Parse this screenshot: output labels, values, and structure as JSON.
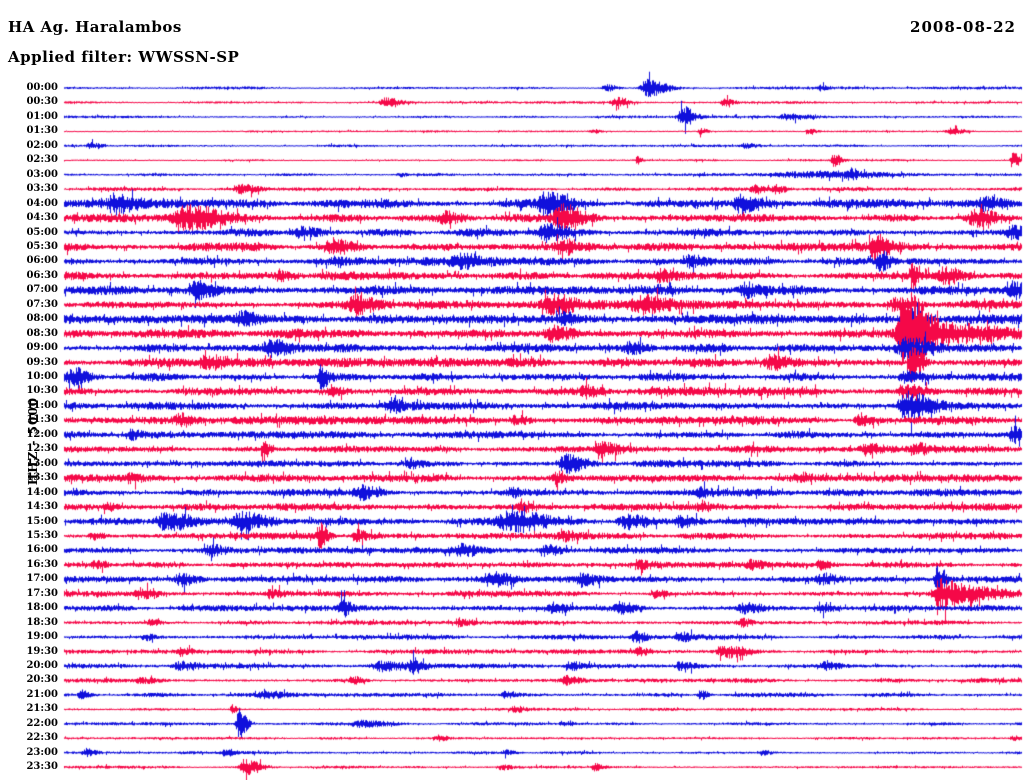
{
  "header": {
    "station": "HA Ag. Haralambos",
    "filter_line": "Applied filter: WWSSN-SP",
    "date": "2008-08-22"
  },
  "y_axis_label": "HHZ - 5000",
  "colors": {
    "blue": "#1010dc",
    "red": "#f50848",
    "text": "#000000",
    "background": "#ffffff"
  },
  "chart_data": {
    "type": "line",
    "subtype": "helicorder-seismogram",
    "title": "HA Ag. Haralambos",
    "date": "2008-08-22",
    "filter": "WWSSN-SP",
    "scale_label": "HHZ - 5000",
    "row_interval_minutes": 30,
    "time_range": [
      "00:00",
      "23:30"
    ],
    "trace_colors_alternate": [
      "blue",
      "red"
    ],
    "amplitude_unit": "pixels",
    "event_format": "[position_fraction_of_row, peak_amplitude_px, envelope_width_fraction]",
    "rows": [
      {
        "time": "00:00",
        "color": "blue",
        "noise": 1.0,
        "events": [
          [
            0.608,
            7,
            0.01
          ],
          [
            0.565,
            3,
            0.006
          ],
          [
            0.79,
            2,
            0.004
          ]
        ]
      },
      {
        "time": "00:30",
        "color": "red",
        "noise": 0.9,
        "events": [
          [
            0.335,
            3.5,
            0.008
          ],
          [
            0.575,
            4,
            0.006
          ],
          [
            0.688,
            3,
            0.005
          ]
        ]
      },
      {
        "time": "01:00",
        "color": "blue",
        "noise": 1.0,
        "events": [
          [
            0.645,
            9,
            0.006
          ],
          [
            0.755,
            2.5,
            0.012
          ]
        ]
      },
      {
        "time": "01:30",
        "color": "red",
        "noise": 0.8,
        "events": [
          [
            0.55,
            2,
            0.004
          ],
          [
            0.664,
            2.5,
            0.004
          ],
          [
            0.777,
            2,
            0.004
          ],
          [
            0.925,
            2.5,
            0.008
          ]
        ]
      },
      {
        "time": "02:00",
        "color": "blue",
        "noise": 1.0,
        "events": [
          [
            0.027,
            2.5,
            0.006
          ],
          [
            0.71,
            2,
            0.008
          ]
        ]
      },
      {
        "time": "02:30",
        "color": "red",
        "noise": 0.8,
        "events": [
          [
            0.598,
            3,
            0.003
          ],
          [
            0.803,
            5,
            0.004
          ],
          [
            0.99,
            6,
            0.004
          ]
        ]
      },
      {
        "time": "03:00",
        "color": "blue",
        "noise": 1.0,
        "events": [
          [
            0.77,
            2.5,
            0.05
          ],
          [
            0.82,
            4,
            0.003
          ],
          [
            0.35,
            1.5,
            0.004
          ]
        ]
      },
      {
        "time": "03:30",
        "color": "red",
        "noise": 1.4,
        "events": [
          [
            0.184,
            3,
            0.008
          ],
          [
            0.72,
            3.5,
            0.005
          ],
          [
            0.742,
            4,
            0.005
          ]
        ]
      },
      {
        "time": "04:00",
        "color": "blue",
        "noise": 3.0,
        "events": [
          [
            0.053,
            6,
            0.01
          ],
          [
            0.502,
            8,
            0.012
          ],
          [
            0.706,
            6,
            0.01
          ],
          [
            0.96,
            4,
            0.01
          ]
        ]
      },
      {
        "time": "04:30",
        "color": "red",
        "noise": 3.0,
        "events": [
          [
            0.126,
            8,
            0.02
          ],
          [
            0.398,
            4,
            0.01
          ],
          [
            0.518,
            10,
            0.012
          ],
          [
            0.951,
            6,
            0.012
          ]
        ]
      },
      {
        "time": "05:00",
        "color": "blue",
        "noise": 3.0,
        "events": [
          [
            0.246,
            4,
            0.012
          ],
          [
            0.502,
            6,
            0.01
          ],
          [
            0.988,
            5,
            0.008
          ]
        ]
      },
      {
        "time": "05:30",
        "color": "red",
        "noise": 3.0,
        "events": [
          [
            0.278,
            4,
            0.01
          ],
          [
            0.518,
            5,
            0.01
          ],
          [
            0.846,
            8,
            0.008
          ]
        ]
      },
      {
        "time": "06:00",
        "color": "blue",
        "noise": 3.0,
        "events": [
          [
            0.413,
            4,
            0.01
          ],
          [
            0.653,
            4,
            0.008
          ],
          [
            0.852,
            8,
            0.005
          ]
        ]
      },
      {
        "time": "06:30",
        "color": "red",
        "noise": 3.0,
        "events": [
          [
            0.225,
            4,
            0.008
          ],
          [
            0.622,
            3.5,
            0.008
          ],
          [
            0.885,
            16,
            0.002
          ],
          [
            0.92,
            5,
            0.008
          ]
        ]
      },
      {
        "time": "07:00",
        "color": "blue",
        "noise": 3.3,
        "events": [
          [
            0.137,
            6,
            0.01
          ],
          [
            0.711,
            5,
            0.01
          ],
          [
            0.99,
            5,
            0.008
          ]
        ]
      },
      {
        "time": "07:30",
        "color": "red",
        "noise": 3.3,
        "events": [
          [
            0.304,
            6,
            0.012
          ],
          [
            0.507,
            6,
            0.012
          ],
          [
            0.6,
            6,
            0.015
          ],
          [
            0.867,
            5,
            0.01
          ]
        ]
      },
      {
        "time": "08:00",
        "color": "blue",
        "noise": 3.3,
        "events": [
          [
            0.184,
            4,
            0.008
          ],
          [
            0.52,
            4,
            0.008
          ],
          [
            0.878,
            9,
            0.008
          ]
        ]
      },
      {
        "time": "08:30",
        "color": "red",
        "noise": 3.3,
        "events": [
          [
            0.508,
            5,
            0.01
          ],
          [
            0.878,
            30,
            0.01
          ],
          [
            0.9,
            8,
            0.035
          ]
        ]
      },
      {
        "time": "09:00",
        "color": "blue",
        "noise": 3.3,
        "events": [
          [
            0.215,
            6,
            0.012
          ],
          [
            0.59,
            4,
            0.01
          ],
          [
            0.878,
            7,
            0.014
          ]
        ]
      },
      {
        "time": "09:30",
        "color": "red",
        "noise": 3.3,
        "events": [
          [
            0.147,
            5,
            0.01
          ],
          [
            0.737,
            5,
            0.008
          ],
          [
            0.885,
            14,
            0.005
          ]
        ]
      },
      {
        "time": "10:00",
        "color": "blue",
        "noise": 3.0,
        "events": [
          [
            0.008,
            6,
            0.008
          ],
          [
            0.267,
            9,
            0.004
          ],
          [
            0.878,
            4,
            0.01
          ]
        ]
      },
      {
        "time": "10:30",
        "color": "red",
        "noise": 3.0,
        "events": [
          [
            0.278,
            4,
            0.008
          ],
          [
            0.544,
            4,
            0.008
          ],
          [
            0.878,
            5,
            0.01
          ]
        ]
      },
      {
        "time": "11:00",
        "color": "blue",
        "noise": 3.0,
        "events": [
          [
            0.34,
            5,
            0.008
          ],
          [
            0.878,
            11,
            0.012
          ]
        ]
      },
      {
        "time": "11:30",
        "color": "red",
        "noise": 3.0,
        "events": [
          [
            0.121,
            4,
            0.008
          ],
          [
            0.47,
            4,
            0.008
          ],
          [
            0.83,
            4,
            0.008
          ]
        ]
      },
      {
        "time": "12:00",
        "color": "blue",
        "noise": 2.6,
        "events": [
          [
            0.069,
            3,
            0.006
          ],
          [
            0.99,
            6,
            0.005
          ]
        ]
      },
      {
        "time": "12:30",
        "color": "red",
        "noise": 2.6,
        "events": [
          [
            0.208,
            7,
            0.003
          ],
          [
            0.56,
            5,
            0.008
          ],
          [
            0.836,
            4,
            0.008
          ],
          [
            0.888,
            4,
            0.006
          ]
        ]
      },
      {
        "time": "13:00",
        "color": "blue",
        "noise": 2.6,
        "events": [
          [
            0.36,
            3,
            0.006
          ],
          [
            0.523,
            8,
            0.01
          ]
        ]
      },
      {
        "time": "13:30",
        "color": "red",
        "noise": 2.6,
        "events": [
          [
            0.069,
            3,
            0.006
          ],
          [
            0.513,
            4,
            0.008
          ],
          [
            0.768,
            3,
            0.006
          ]
        ]
      },
      {
        "time": "14:00",
        "color": "blue",
        "noise": 2.6,
        "events": [
          [
            0.31,
            5,
            0.01
          ],
          [
            0.466,
            3,
            0.006
          ],
          [
            0.664,
            3,
            0.006
          ]
        ]
      },
      {
        "time": "14:30",
        "color": "red",
        "noise": 2.5,
        "events": [
          [
            0.043,
            3,
            0.005
          ],
          [
            0.476,
            5,
            0.004
          ],
          [
            0.664,
            3,
            0.006
          ]
        ]
      },
      {
        "time": "15:00",
        "color": "blue",
        "noise": 2.8,
        "events": [
          [
            0.105,
            7,
            0.014
          ],
          [
            0.184,
            7,
            0.014
          ],
          [
            0.466,
            7,
            0.018
          ],
          [
            0.586,
            6,
            0.012
          ],
          [
            0.643,
            4,
            0.008
          ]
        ]
      },
      {
        "time": "15:30",
        "color": "red",
        "noise": 2.4,
        "events": [
          [
            0.03,
            3,
            0.006
          ],
          [
            0.266,
            10,
            0.004
          ],
          [
            0.304,
            5,
            0.006
          ],
          [
            0.52,
            3,
            0.008
          ]
        ]
      },
      {
        "time": "16:00",
        "color": "blue",
        "noise": 2.4,
        "events": [
          [
            0.152,
            4,
            0.008
          ],
          [
            0.413,
            4,
            0.01
          ],
          [
            0.502,
            4,
            0.008
          ]
        ]
      },
      {
        "time": "16:30",
        "color": "red",
        "noise": 2.1,
        "events": [
          [
            0.032,
            3,
            0.006
          ],
          [
            0.601,
            3,
            0.006
          ],
          [
            0.716,
            4,
            0.006
          ],
          [
            0.789,
            3,
            0.005
          ]
        ]
      },
      {
        "time": "17:00",
        "color": "blue",
        "noise": 2.4,
        "events": [
          [
            0.121,
            5,
            0.008
          ],
          [
            0.445,
            6,
            0.01
          ],
          [
            0.54,
            4,
            0.008
          ],
          [
            0.79,
            4,
            0.008
          ],
          [
            0.911,
            10,
            0.004
          ]
        ]
      },
      {
        "time": "17:30",
        "color": "red",
        "noise": 2.1,
        "events": [
          [
            0.079,
            4,
            0.008
          ],
          [
            0.215,
            3,
            0.006
          ],
          [
            0.617,
            4,
            0.006
          ],
          [
            0.914,
            13,
            0.01
          ],
          [
            0.95,
            5,
            0.02
          ]
        ]
      },
      {
        "time": "18:00",
        "color": "blue",
        "noise": 2.1,
        "events": [
          [
            0.29,
            6,
            0.005
          ],
          [
            0.51,
            4,
            0.008
          ],
          [
            0.58,
            4,
            0.008
          ],
          [
            0.71,
            4,
            0.01
          ],
          [
            0.79,
            3,
            0.006
          ]
        ]
      },
      {
        "time": "18:30",
        "color": "red",
        "noise": 1.7,
        "events": [
          [
            0.09,
            2.5,
            0.005
          ],
          [
            0.413,
            3,
            0.006
          ],
          [
            0.706,
            3,
            0.006
          ]
        ]
      },
      {
        "time": "19:00",
        "color": "blue",
        "noise": 1.7,
        "events": [
          [
            0.085,
            2.5,
            0.005
          ],
          [
            0.596,
            4,
            0.006
          ],
          [
            0.643,
            3,
            0.006
          ]
        ]
      },
      {
        "time": "19:30",
        "color": "red",
        "noise": 1.7,
        "events": [
          [
            0.121,
            3,
            0.006
          ],
          [
            0.6,
            3,
            0.006
          ],
          [
            0.69,
            5,
            0.012
          ]
        ]
      },
      {
        "time": "20:00",
        "color": "blue",
        "noise": 1.8,
        "events": [
          [
            0.12,
            3,
            0.01
          ],
          [
            0.33,
            4,
            0.012
          ],
          [
            0.363,
            6,
            0.005
          ],
          [
            0.528,
            3.5,
            0.008
          ],
          [
            0.643,
            3,
            0.008
          ],
          [
            0.794,
            3,
            0.008
          ]
        ]
      },
      {
        "time": "20:30",
        "color": "red",
        "noise": 1.6,
        "events": [
          [
            0.08,
            2.5,
            0.01
          ],
          [
            0.3,
            3,
            0.006
          ],
          [
            0.524,
            3,
            0.006
          ]
        ]
      },
      {
        "time": "21:00",
        "color": "blue",
        "noise": 1.5,
        "events": [
          [
            0.017,
            4,
            0.004
          ],
          [
            0.21,
            2.5,
            0.012
          ],
          [
            0.46,
            3,
            0.006
          ],
          [
            0.664,
            4,
            0.004
          ]
        ]
      },
      {
        "time": "21:30",
        "color": "red",
        "noise": 1.1,
        "events": [
          [
            0.175,
            4,
            0.003
          ],
          [
            0.47,
            2,
            0.005
          ]
        ]
      },
      {
        "time": "22:00",
        "color": "blue",
        "noise": 1.1,
        "events": [
          [
            0.182,
            13,
            0.004
          ],
          [
            0.31,
            2.5,
            0.015
          ],
          [
            0.52,
            2,
            0.006
          ]
        ]
      },
      {
        "time": "22:30",
        "color": "red",
        "noise": 1.0,
        "events": [
          [
            0.39,
            2,
            0.005
          ],
          [
            0.99,
            2,
            0.004
          ]
        ]
      },
      {
        "time": "23:00",
        "color": "blue",
        "noise": 1.1,
        "events": [
          [
            0.022,
            3,
            0.005
          ],
          [
            0.168,
            2.5,
            0.005
          ],
          [
            0.46,
            2,
            0.005
          ],
          [
            0.727,
            2,
            0.005
          ]
        ]
      },
      {
        "time": "23:30",
        "color": "red",
        "noise": 1.1,
        "events": [
          [
            0.189,
            6,
            0.008
          ],
          [
            0.456,
            2,
            0.005
          ],
          [
            0.554,
            3,
            0.004
          ]
        ]
      }
    ]
  }
}
